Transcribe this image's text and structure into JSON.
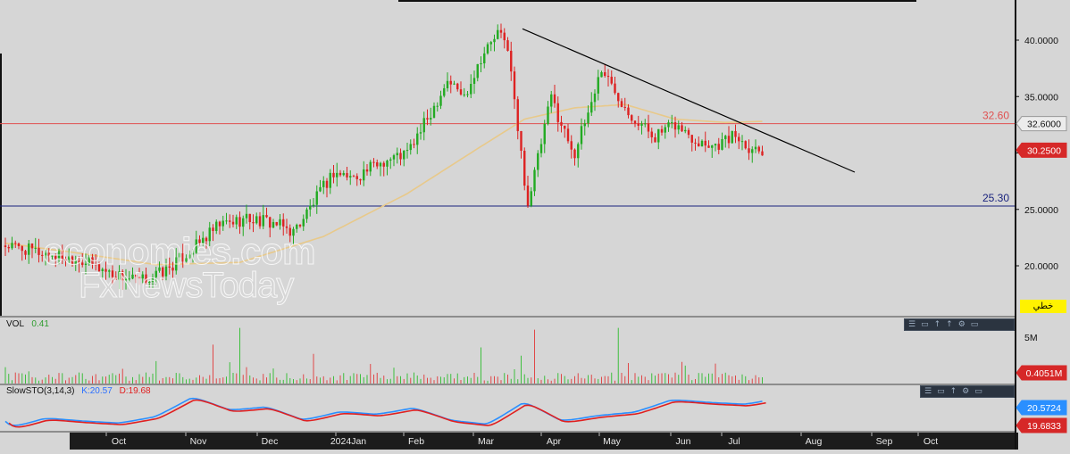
{
  "chart_data": {
    "type": "candlestick",
    "price_axis": {
      "ticks": [
        "40.0000",
        "35.0000",
        "30.0000",
        "25.0000",
        "20.0000"
      ],
      "tick_values": [
        40,
        35,
        30,
        25,
        20
      ],
      "range": [
        16.2,
        42.5
      ]
    },
    "x_labels": [
      "Oct",
      "Nov",
      "Dec",
      "2024Jan",
      "Feb",
      "Mar",
      "Apr",
      "May",
      "Jun",
      "Jul",
      "Aug",
      "Sep",
      "Oct"
    ],
    "horizontal_levels": [
      {
        "label": "32.60",
        "value": 32.6,
        "color": "#e05050"
      },
      {
        "label": "25.30",
        "value": 25.3,
        "color": "#1a237e"
      }
    ],
    "trendline": {
      "from": {
        "x": "Mar",
        "value": 41.0
      },
      "to": {
        "x": "Aug",
        "value": 28.3
      },
      "color": "#000000"
    },
    "price_tags": [
      {
        "label": "32.6000",
        "value": 32.6,
        "style": "neutral"
      },
      {
        "label": "30.2500",
        "value": 30.25,
        "style": "red"
      }
    ],
    "price_path_keypoints": [
      {
        "i": 0,
        "v": 21.8
      },
      {
        "i": 10,
        "v": 21.2
      },
      {
        "i": 22,
        "v": 20.6
      },
      {
        "i": 32,
        "v": 19.3
      },
      {
        "i": 40,
        "v": 18.6
      },
      {
        "i": 48,
        "v": 19.6
      },
      {
        "i": 56,
        "v": 21.5
      },
      {
        "i": 64,
        "v": 23.6
      },
      {
        "i": 72,
        "v": 24.2
      },
      {
        "i": 80,
        "v": 23.8
      },
      {
        "i": 86,
        "v": 23.0
      },
      {
        "i": 92,
        "v": 25.6
      },
      {
        "i": 98,
        "v": 28.3
      },
      {
        "i": 104,
        "v": 27.8
      },
      {
        "i": 112,
        "v": 29.2
      },
      {
        "i": 120,
        "v": 30.0
      },
      {
        "i": 126,
        "v": 33.0
      },
      {
        "i": 132,
        "v": 36.5
      },
      {
        "i": 137,
        "v": 35.0
      },
      {
        "i": 142,
        "v": 38.5
      },
      {
        "i": 147,
        "v": 40.6
      },
      {
        "i": 150,
        "v": 39.5
      },
      {
        "i": 153,
        "v": 32.0
      },
      {
        "i": 156,
        "v": 25.5
      },
      {
        "i": 159,
        "v": 29.5
      },
      {
        "i": 163,
        "v": 35.0
      },
      {
        "i": 166,
        "v": 32.5
      },
      {
        "i": 170,
        "v": 30.0
      },
      {
        "i": 174,
        "v": 33.6
      },
      {
        "i": 178,
        "v": 37.5
      },
      {
        "i": 182,
        "v": 35.5
      },
      {
        "i": 188,
        "v": 33.0
      },
      {
        "i": 194,
        "v": 31.5
      },
      {
        "i": 200,
        "v": 32.5
      },
      {
        "i": 206,
        "v": 31.2
      },
      {
        "i": 212,
        "v": 30.7
      },
      {
        "i": 218,
        "v": 31.6
      },
      {
        "i": 222,
        "v": 30.6
      },
      {
        "i": 226,
        "v": 30.25
      }
    ],
    "moving_average_keypoints": [
      {
        "i": 0,
        "v": 22.0
      },
      {
        "i": 20,
        "v": 21.2
      },
      {
        "i": 45,
        "v": 20.1
      },
      {
        "i": 70,
        "v": 20.3
      },
      {
        "i": 95,
        "v": 22.6
      },
      {
        "i": 120,
        "v": 26.4
      },
      {
        "i": 140,
        "v": 30.2
      },
      {
        "i": 155,
        "v": 33.0
      },
      {
        "i": 170,
        "v": 34.0
      },
      {
        "i": 185,
        "v": 34.3
      },
      {
        "i": 200,
        "v": 33.0
      },
      {
        "i": 215,
        "v": 32.7
      },
      {
        "i": 226,
        "v": 32.8
      }
    ],
    "volume": {
      "label": "VOL",
      "value": "0.41",
      "axis_tick": "5M",
      "last_tag": "0.4051M",
      "spikes": [
        {
          "i": 70,
          "v": 6.0
        },
        {
          "i": 92,
          "v": 3.2
        },
        {
          "i": 142,
          "v": 3.9
        },
        {
          "i": 158,
          "v": 5.8
        },
        {
          "i": 183,
          "v": 6.0
        },
        {
          "i": 154,
          "v": 3.0
        },
        {
          "i": 62,
          "v": 4.2
        }
      ]
    },
    "stochastic": {
      "label": "SlowSTO(3,14,3)",
      "k_label": "K:20.57",
      "d_label": "D:19.68",
      "k_tag": "20.5724",
      "d_tag": "19.6833",
      "k_color": "#2a8fff",
      "d_color": "#e02020"
    },
    "watermark": [
      "economies.com",
      "FxNewsToday"
    ],
    "badge": "خطي"
  },
  "toolbar_icons": [
    "menu-icon",
    "window-icon",
    "up-icon",
    "up-icon",
    "settings-icon",
    "more-icon"
  ]
}
